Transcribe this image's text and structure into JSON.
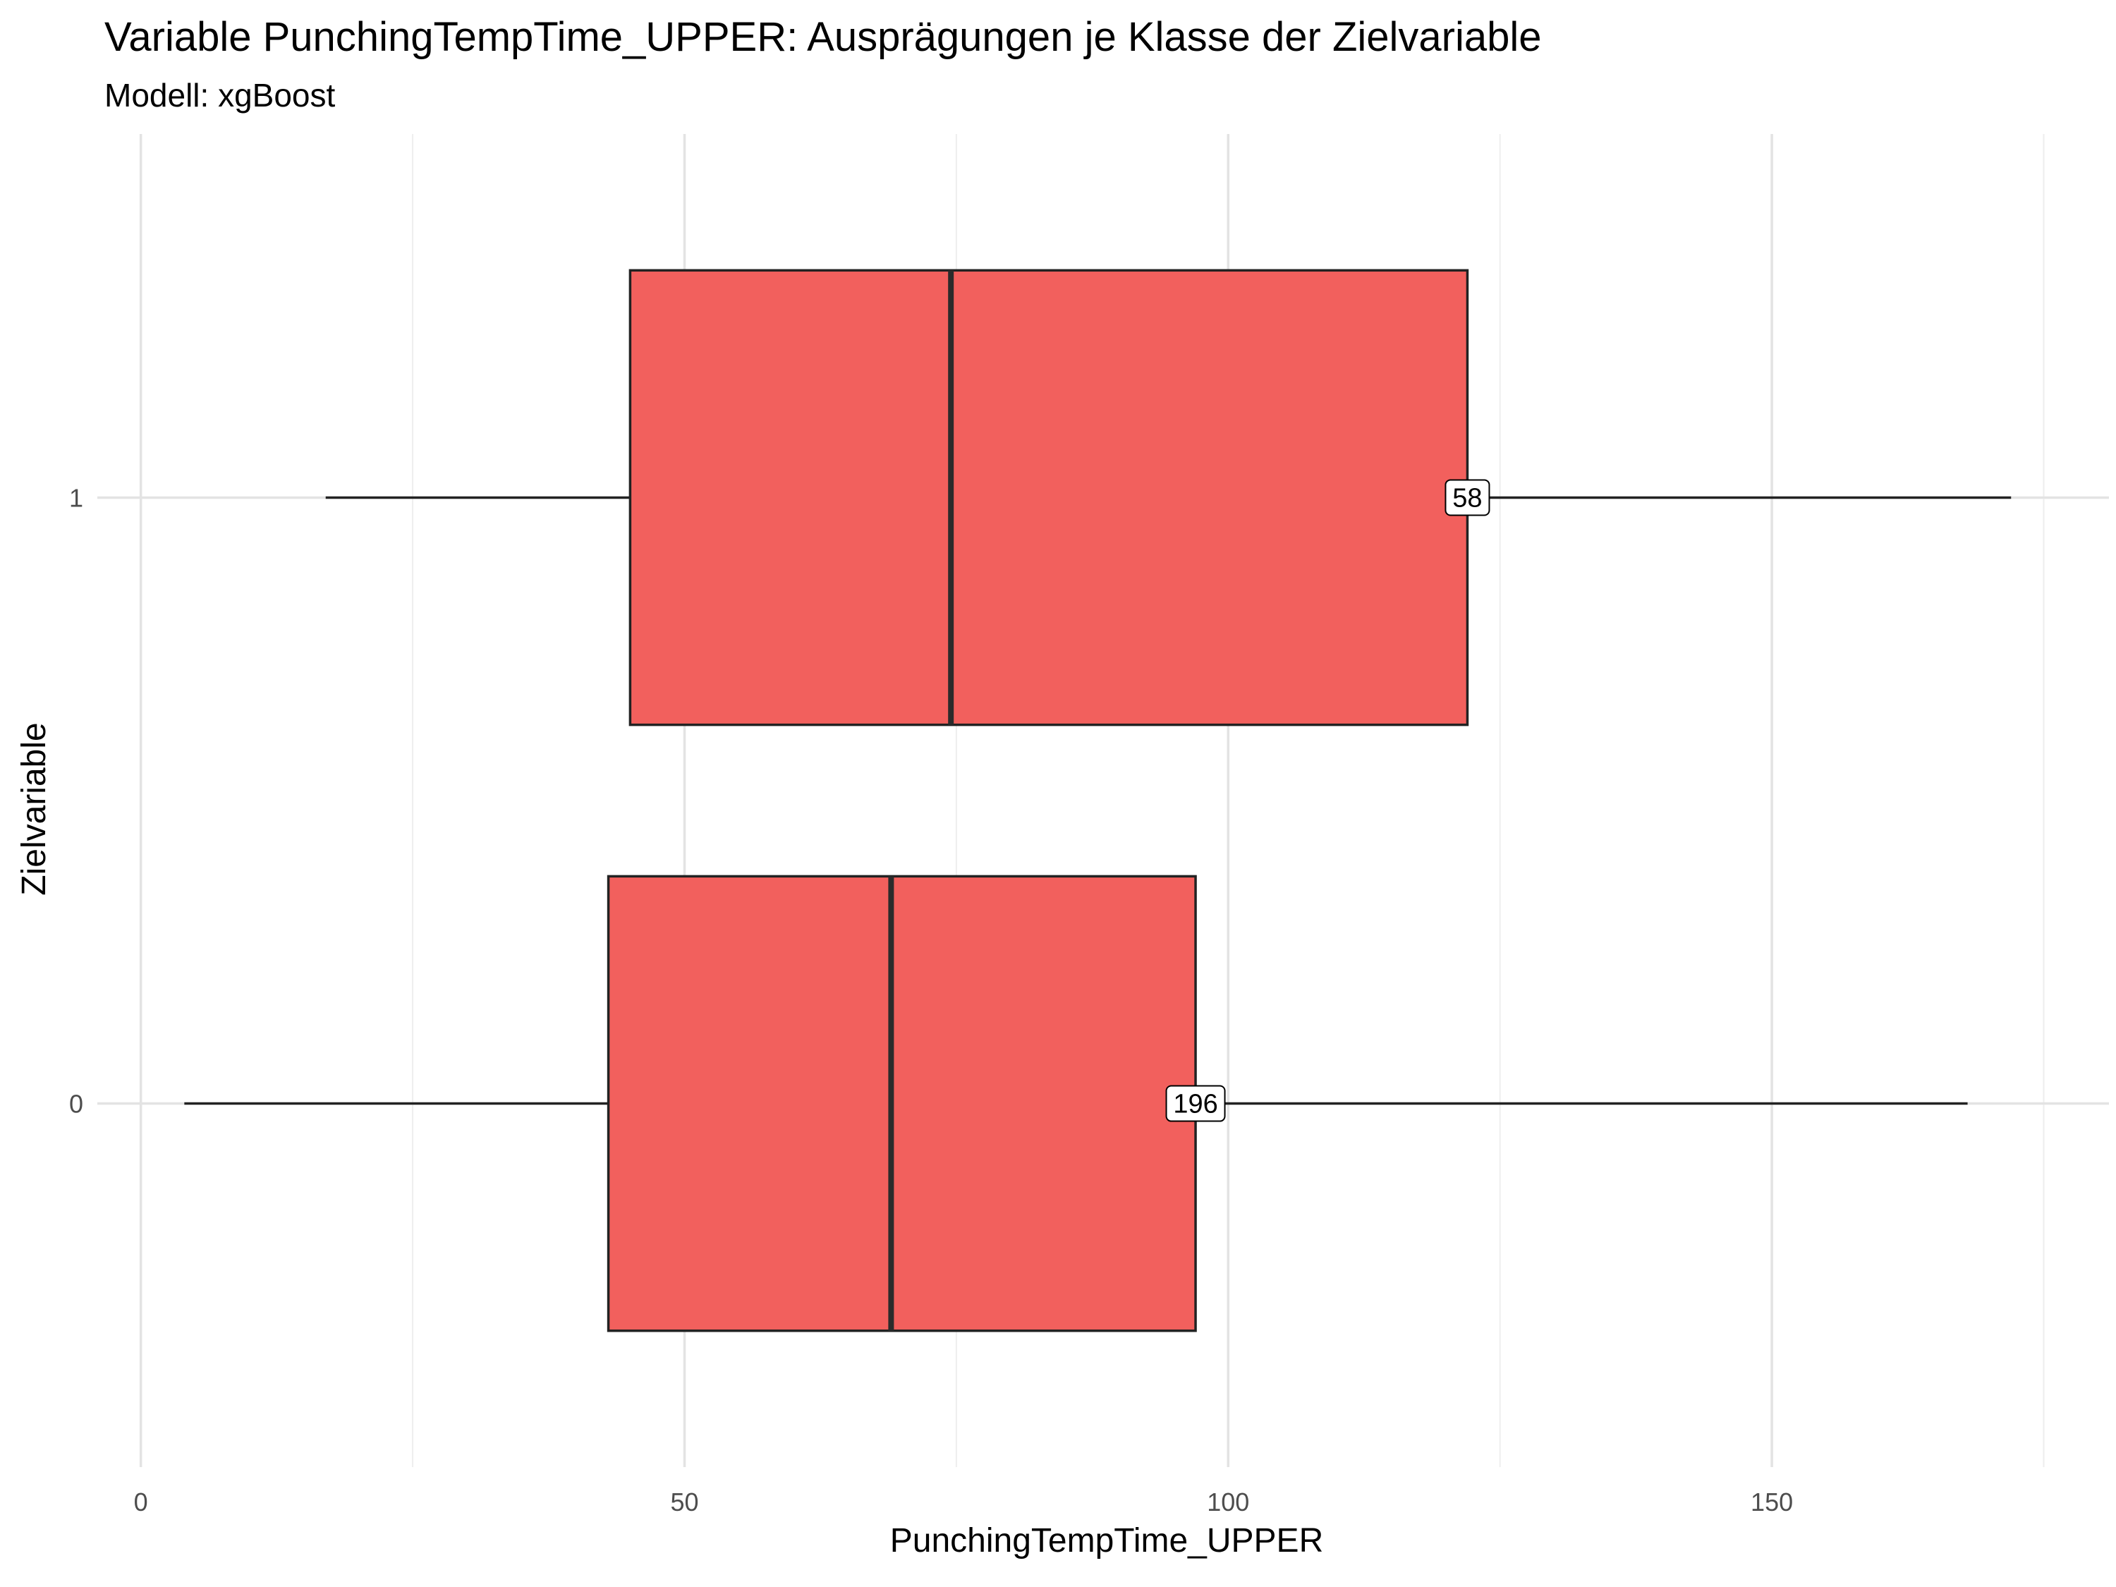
{
  "chart_data": {
    "type": "boxplot",
    "title": "Variable PunchingTempTime_UPPER: Ausprägungen je Klasse der Zielvariable",
    "subtitle": "Modell: xgBoost",
    "xlabel": "PunchingTempTime_UPPER",
    "ylabel": "Zielvariable",
    "xlim": [
      -4,
      181
    ],
    "x_ticks": [
      0,
      50,
      100,
      150
    ],
    "x_minor_ticks": [
      25,
      75,
      125,
      175
    ],
    "categories": [
      "0",
      "1"
    ],
    "boxes": [
      {
        "category": "0",
        "min": 4,
        "q1": 43,
        "median": 69,
        "q3": 97,
        "max": 168,
        "n": "196"
      },
      {
        "category": "1",
        "min": 17,
        "q1": 45,
        "median": 74.5,
        "q3": 122,
        "max": 172,
        "n": "58"
      }
    ],
    "fill_color": "#f2605d",
    "grid": true,
    "legend": "none"
  }
}
